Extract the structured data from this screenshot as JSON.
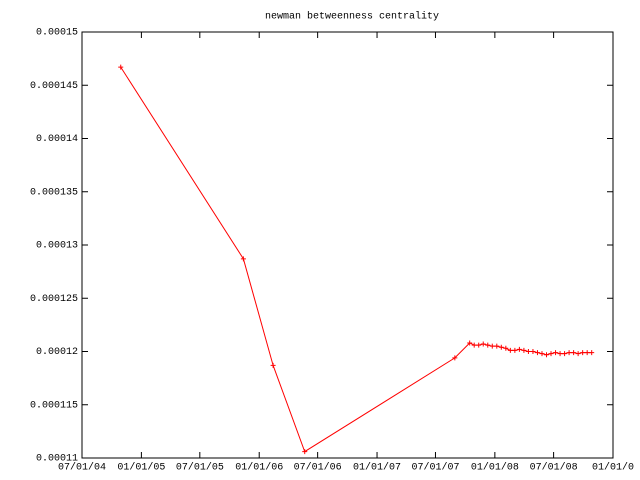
{
  "chart_data": {
    "type": "line",
    "title": "newman betweenness centrality",
    "xlim": [
      "2004-07-01",
      "2009-01-01"
    ],
    "xticks": [
      {
        "value": "2004-07-01",
        "label": "07/01/04"
      },
      {
        "value": "2005-01-01",
        "label": "01/01/05"
      },
      {
        "value": "2005-07-01",
        "label": "07/01/05"
      },
      {
        "value": "2006-01-01",
        "label": "01/01/06"
      },
      {
        "value": "2006-07-01",
        "label": "07/01/06"
      },
      {
        "value": "2007-01-01",
        "label": "01/01/07"
      },
      {
        "value": "2007-07-01",
        "label": "07/01/07"
      },
      {
        "value": "2008-01-01",
        "label": "01/01/08"
      },
      {
        "value": "2008-07-01",
        "label": "07/01/08"
      },
      {
        "value": "2009-01-01",
        "label": "01/01/0"
      }
    ],
    "ylim": [
      0.00011,
      0.00015
    ],
    "yticks": [
      0.00011,
      0.000115,
      0.00012,
      0.000125,
      0.00013,
      0.000135,
      0.00014,
      0.000145,
      0.00015
    ],
    "series": [
      {
        "color": "#ff0000",
        "x": [
          "2004-10-29",
          "2005-11-13",
          "2006-02-13",
          "2006-05-22",
          "2007-08-30",
          "2007-10-15",
          "2007-10-29",
          "2007-11-12",
          "2007-11-26",
          "2007-12-10",
          "2007-12-24",
          "2008-01-07",
          "2008-01-21",
          "2008-02-04",
          "2008-02-18",
          "2008-03-03",
          "2008-03-17",
          "2008-03-31",
          "2008-04-14",
          "2008-04-28",
          "2008-05-12",
          "2008-05-26",
          "2008-06-09",
          "2008-06-23",
          "2008-07-07",
          "2008-07-21",
          "2008-08-04",
          "2008-08-18",
          "2008-09-01",
          "2008-09-15",
          "2008-09-29",
          "2008-10-13",
          "2008-10-27"
        ],
        "values": [
          0.0001467,
          0.0001287,
          0.0001187,
          0.0001106,
          0.0001194,
          0.0001208,
          0.0001206,
          0.0001206,
          0.0001207,
          0.0001206,
          0.0001205,
          0.0001205,
          0.0001204,
          0.0001203,
          0.0001201,
          0.0001201,
          0.0001202,
          0.0001201,
          0.00012,
          0.00012,
          0.0001199,
          0.0001198,
          0.0001197,
          0.0001198,
          0.0001199,
          0.0001198,
          0.0001198,
          0.0001199,
          0.0001199,
          0.0001198,
          0.0001199,
          0.0001199,
          0.0001199
        ]
      }
    ]
  }
}
